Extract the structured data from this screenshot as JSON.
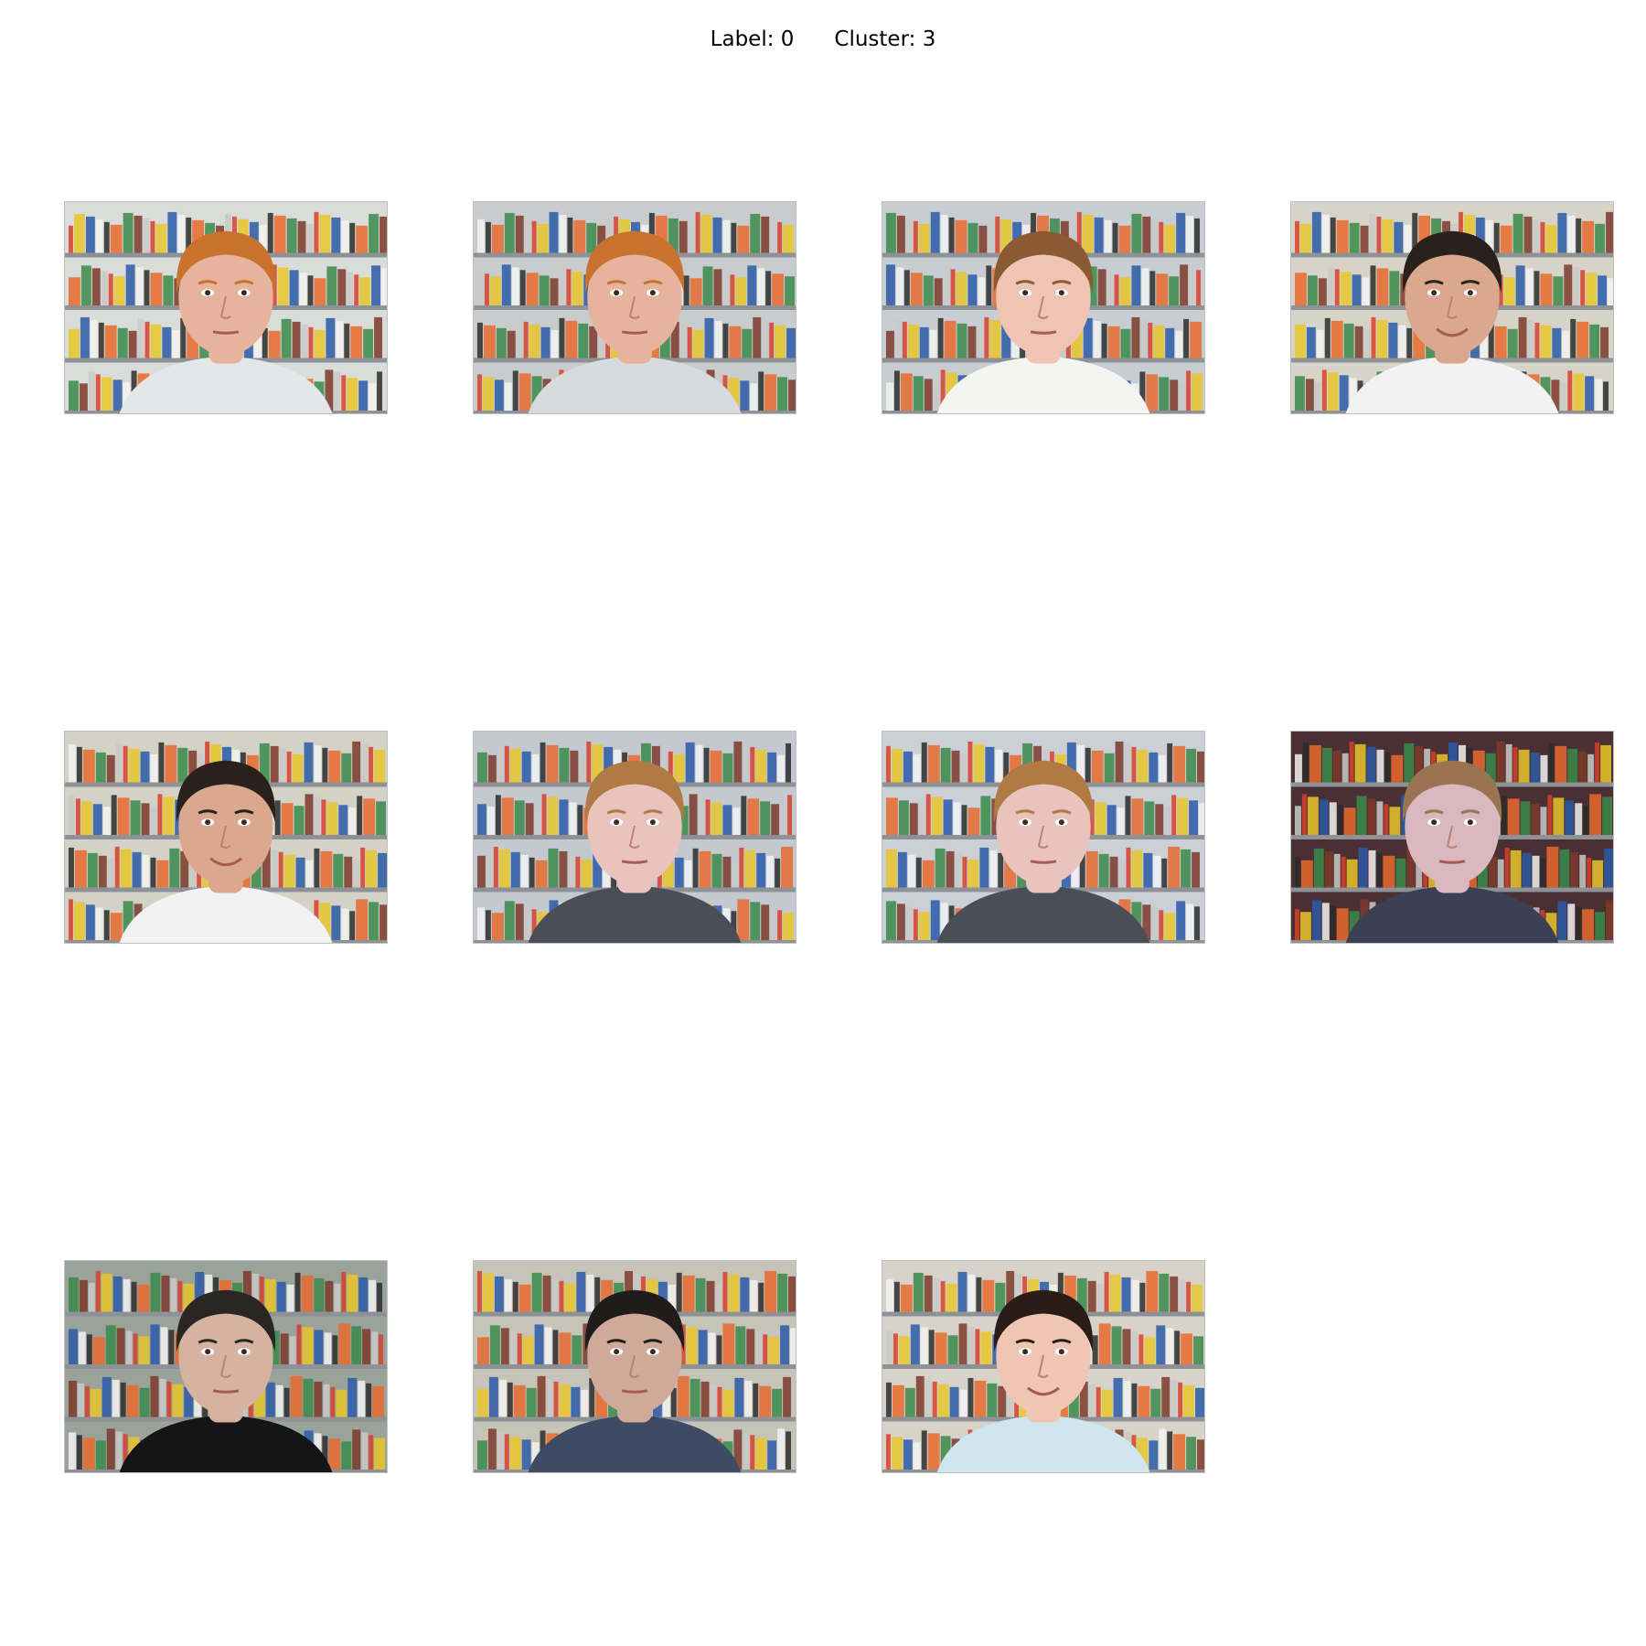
{
  "figure": {
    "label_text": "Label: 0",
    "cluster_text": "Cluster: 3"
  },
  "photos": [
    {
      "hair": "#c9722d",
      "skin": "#e6b39d",
      "shirt": "#e4e6e8",
      "backdrop": "#d9dcd8",
      "smile": false
    },
    {
      "hair": "#c9722d",
      "skin": "#e6b39d",
      "shirt": "#d8dadc",
      "backdrop": "#c9cccc",
      "smile": false
    },
    {
      "hair": "#8a5a34",
      "skin": "#efc4b2",
      "shirt": "#f4f4f2",
      "backdrop": "#c7cdd2",
      "smile": false
    },
    {
      "hair": "#2b211c",
      "skin": "#d9a88f",
      "shirt": "#f2f2f2",
      "backdrop": "#d6d4c9",
      "smile": true
    },
    {
      "hair": "#2b211c",
      "skin": "#d9a88f",
      "shirt": "#f2f2f2",
      "backdrop": "#d2d2c6",
      "smile": true
    },
    {
      "hair": "#b07a45",
      "skin": "#e9c4bf",
      "shirt": "#4a4e57",
      "backdrop": "#c4c9d0",
      "smile": false
    },
    {
      "hair": "#b07a45",
      "skin": "#e9c4bf",
      "shirt": "#4a4e57",
      "backdrop": "#cbd0d6",
      "smile": false
    },
    {
      "hair": "#9a7452",
      "skin": "#d9b8c0",
      "shirt": "#3b4055",
      "backdrop": "#4a2f34",
      "smile": false
    },
    {
      "hair": "#2a2624",
      "skin": "#d6b2a0",
      "shirt": "#151515",
      "backdrop": "#9aa39a",
      "smile": false
    },
    {
      "hair": "#1f1c1b",
      "skin": "#cfa99a",
      "shirt": "#3e4b63",
      "backdrop": "#c6c3b8",
      "smile": false
    },
    {
      "hair": "#2a1c17",
      "skin": "#efc6b3",
      "shirt": "#cfe6ef",
      "backdrop": "#d7d3ca",
      "smile": true
    }
  ]
}
